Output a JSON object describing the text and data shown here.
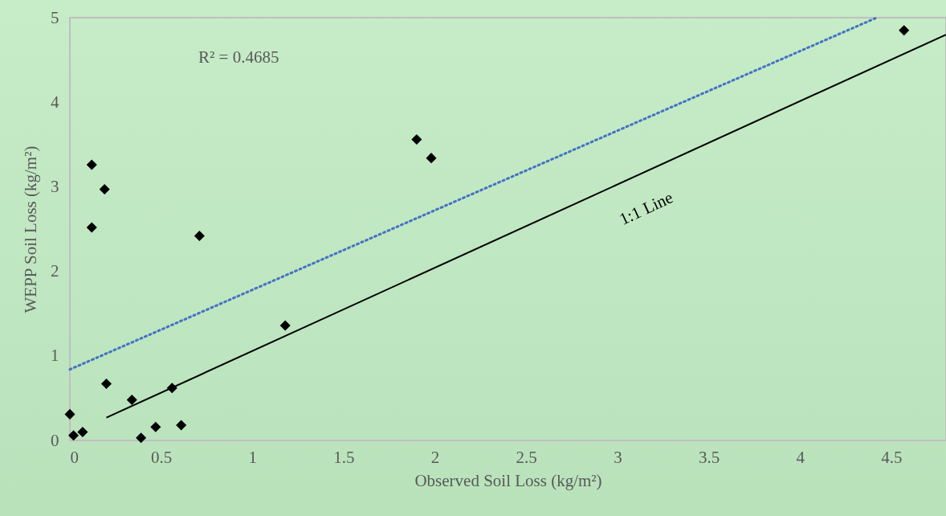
{
  "chart_data": {
    "type": "scatter",
    "xlabel": "Observed Soil Loss (kg/m²)",
    "ylabel": "WEPP Soil Loss (kg/m²)",
    "xlim": [
      0,
      4.8
    ],
    "ylim": [
      0,
      5
    ],
    "xticks": [
      0,
      0.5,
      1,
      1.5,
      2,
      2.5,
      3,
      3.5,
      4,
      4.5
    ],
    "yticks": [
      0,
      1,
      2,
      3,
      4,
      5
    ],
    "grid": false,
    "annotations": [
      "R² = 0.4685",
      "1:1 Line"
    ],
    "series": [
      {
        "color": "#000000",
        "marker": "diamond",
        "x": [
          0,
          0.02,
          0.07,
          0.12,
          0.12,
          0.19,
          0.2,
          0.34,
          0.39,
          0.47,
          0.56,
          0.61,
          0.71,
          1.18,
          1.9,
          1.98,
          4.57
        ],
        "values": [
          0.31,
          0.06,
          0.1,
          3.26,
          2.52,
          2.97,
          0.67,
          0.48,
          0.03,
          0.16,
          0.62,
          0.18,
          2.42,
          1.36,
          3.56,
          3.34,
          4.85
        ]
      },
      {
        "type": "line",
        "color": "#000000",
        "x": [
          0.2,
          4.8
        ],
        "values": [
          0.27,
          4.8
        ],
        "line_style": "solid"
      },
      {
        "type": "line",
        "color": "#4472c4",
        "x": [
          0,
          4.42
        ],
        "values": [
          0.84,
          5
        ],
        "line_style": "dotted"
      }
    ]
  }
}
